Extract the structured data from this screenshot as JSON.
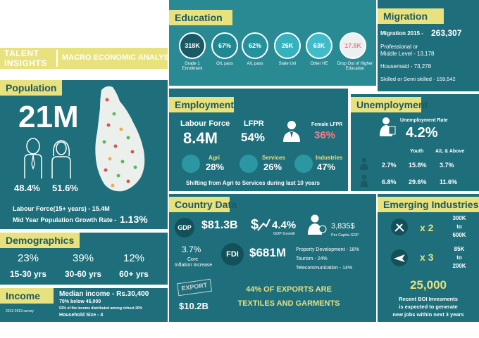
{
  "title": {
    "talent": "TALENT",
    "insights": "INSIGHTS",
    "macro": "MACRO ECONOMIC ANALYSIS"
  },
  "population": {
    "header": "Population",
    "total": "21M",
    "male_pct": "48.4%",
    "female_pct": "51.6%",
    "labour_force": "Labour Force(15+ years) - 15.4M",
    "growth_label": "Mid Year Population Growth Rate -",
    "growth_value": "1.13%"
  },
  "demographics": {
    "header": "Demographics",
    "groups": [
      {
        "pct": "23%",
        "range": "15-30 yrs"
      },
      {
        "pct": "39%",
        "range": "30-60 yrs"
      },
      {
        "pct": "12%",
        "range": "60+ yrs"
      }
    ]
  },
  "income": {
    "header": "Income",
    "survey": "2012-2013 survey",
    "median": "Median income - Rs.30,400",
    "below": "70% below 45,000",
    "distribution": "53% of the income distributed among richest 20%",
    "household": "Household Size - 4"
  },
  "education": {
    "header": "Education",
    "items": [
      {
        "value": "318K",
        "label": "Grade 1 Enrollment",
        "color": "#1a5a64"
      },
      {
        "value": "67%",
        "label": "O/L pass",
        "color": "#1f8892"
      },
      {
        "value": "62%",
        "label": "A/L pass",
        "color": "#23929c"
      },
      {
        "value": "26K",
        "label": "State Uni",
        "color": "#35b2bd"
      },
      {
        "value": "63K",
        "label": "Other HE",
        "color": "#3fbcc7"
      },
      {
        "value": "17.5K",
        "label": "Drop Out of Higher Education",
        "color": "#ecf0f1"
      }
    ]
  },
  "migration": {
    "header": "Migration",
    "total_label": "Migration 2015 -",
    "total_value": "263,307",
    "professional_1": "Professional or",
    "professional_2": "Middle Level - 13,178",
    "housemaid": "Housemaid - 73,278",
    "skilled": "Skilled or Semi skilled - 159,542"
  },
  "employment": {
    "header": "Employment",
    "labour_force_label": "Labour Force",
    "labour_force_value": "8.4M",
    "lfpr_label": "LFPR",
    "lfpr_value": "54%",
    "female_lfpr_label": "Female LFPR",
    "female_lfpr_value": "36%",
    "sectors": [
      {
        "label": "Agri",
        "value": "28%"
      },
      {
        "label": "Services",
        "value": "26%"
      },
      {
        "label": "Industries",
        "value": "47%"
      }
    ],
    "shift": "Shifting from Agri to Services during last 10 years"
  },
  "unemployment": {
    "header": "Unemployment",
    "rate_label": "Unemployment Rate",
    "rate_value": "4.2%",
    "col_youth": "Youth",
    "col_al": "A/L & Above",
    "row1": [
      "2.7%",
      "15.8%",
      "3.7%"
    ],
    "row2": [
      "6.8%",
      "29.6%",
      "11.6%"
    ]
  },
  "country": {
    "header": "Country Data",
    "gdp_badge": "GDP",
    "gdp_value": "$81.3B",
    "growth_value": "4.4%",
    "growth_label": "GDP Growth",
    "per_capita_value": "3,835$",
    "per_capita_label": "Per Capita GDP",
    "inflation_value": "3.7%",
    "inflation_label_1": "Core",
    "inflation_label_2": "Inflation Increase",
    "fdi_badge": "FDI",
    "fdi_value": "$681M",
    "fdi_property": "Property Development - 18%",
    "fdi_tourism": "Tourism - 24%",
    "fdi_telecom": "Telecommunication - 14%",
    "export_stamp": "EXPORT",
    "export_value": "$10.2B",
    "exports_line1": "44% OF EXPORTS ARE",
    "exports_line2": "TEXTILES AND GARMENTS"
  },
  "emerging": {
    "header": "Emerging Industries",
    "mult1": "x 2",
    "range1_a": "300K",
    "range1_to": "to",
    "range1_b": "600K",
    "mult2": "x 3",
    "range2_a": "85K",
    "range2_to": "to",
    "range2_b": "200K",
    "jobs_value": "25,000",
    "jobs_line1": "Recent BOI Invesments",
    "jobs_line2": "is expected to generate",
    "jobs_line3": "new jobs within next 3 years"
  },
  "colors": {
    "teal": "#1e6f7b",
    "yellow": "#e7e17e",
    "pink": "#f07f8a"
  }
}
